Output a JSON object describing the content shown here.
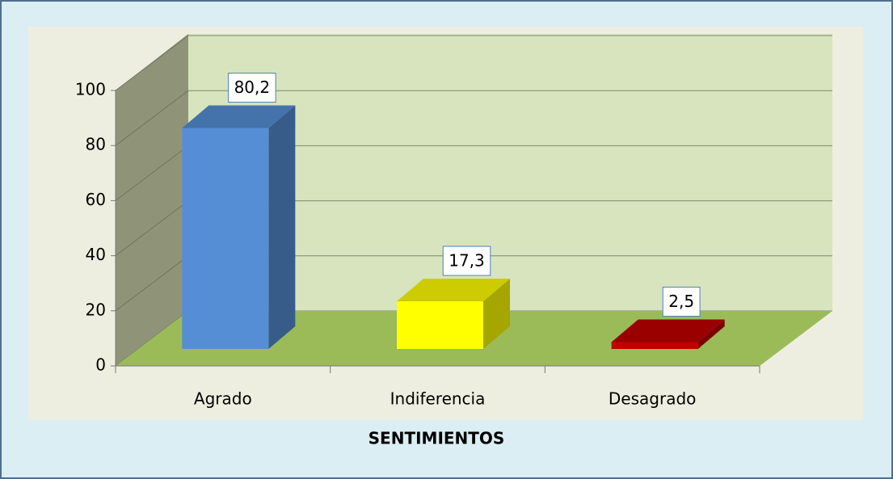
{
  "chart_data": {
    "type": "bar3d",
    "x_label": "SENTIMIENTOS",
    "categories": [
      "Agrado",
      "Indiferencia",
      "Desagrado"
    ],
    "values": [
      80.2,
      17.3,
      2.5
    ],
    "value_labels": [
      "80,2",
      "17,3",
      "2,5"
    ],
    "colors": [
      "#558ed5",
      "#ffff00",
      "#c00000"
    ],
    "ylim": [
      0,
      100
    ],
    "yticks": [
      0,
      20,
      40,
      60,
      80,
      100
    ],
    "grid": true
  }
}
